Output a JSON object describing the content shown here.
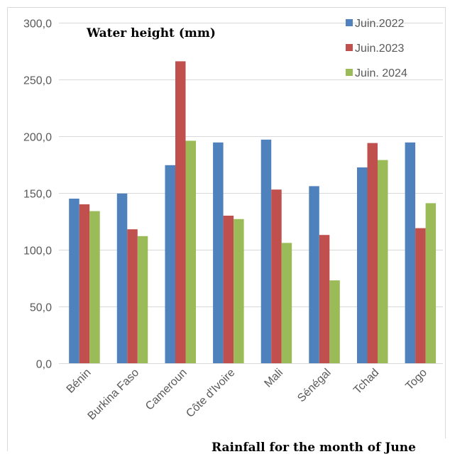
{
  "chart_data": {
    "type": "bar",
    "title": "Water height (mm)",
    "xlabel": "Rainfall for the month of June",
    "ylabel": "",
    "ylim": [
      0,
      300
    ],
    "yticks": [
      "0,0",
      "50,0",
      "100,0",
      "150,0",
      "200,0",
      "250,0",
      "300,0"
    ],
    "categories": [
      "Bénin",
      "Burkina Faso",
      "Cameroun",
      "Côte d'Ivoire",
      "Mali",
      "Sénégal",
      "Tchad",
      "Togo"
    ],
    "series": [
      {
        "name": "Juin.2022",
        "color": "#4f81bd",
        "values": [
          145,
          149.5,
          174.5,
          194.5,
          197,
          156,
          172.5,
          194.5
        ]
      },
      {
        "name": "Juin.2023",
        "color": "#c0504d",
        "values": [
          140,
          118,
          266,
          130,
          153,
          113,
          194,
          119
        ]
      },
      {
        "name": "Juin. 2024",
        "color": "#9bbb59",
        "values": [
          134,
          112,
          196,
          127,
          106,
          73,
          179,
          141
        ]
      }
    ],
    "grid": true,
    "legend_position": "top-right"
  }
}
